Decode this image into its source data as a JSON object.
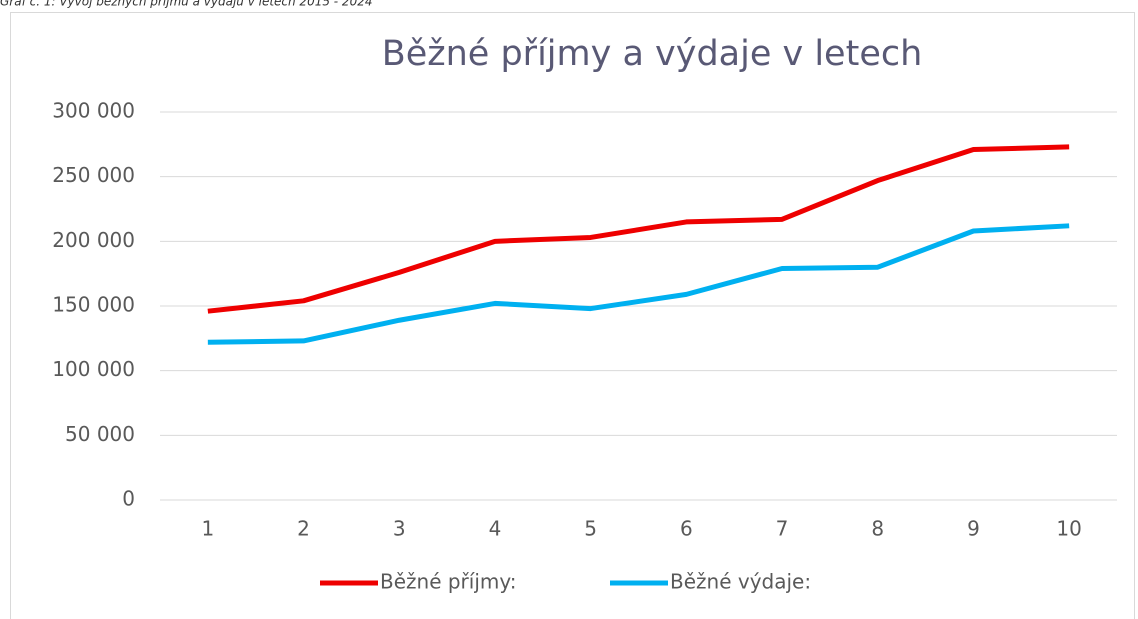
{
  "caption": "Graf č. 1: Vývoj běžných příjmů a výdajů v letech 2015 - 2024",
  "chart_data": {
    "type": "line",
    "title": "Běžné příjmy a výdaje v letech",
    "categories": [
      "1",
      "2",
      "3",
      "4",
      "5",
      "6",
      "7",
      "8",
      "9",
      "10"
    ],
    "series": [
      {
        "name": "Běžné příjmy:",
        "color": "#ee0000",
        "values": [
          146000,
          154000,
          176000,
          200000,
          203000,
          215000,
          217000,
          247000,
          271000,
          273000
        ]
      },
      {
        "name": "Běžné výdaje:",
        "color": "#00b0f0",
        "values": [
          122000,
          123000,
          139000,
          152000,
          148000,
          159000,
          179000,
          180000,
          208000,
          212000
        ]
      }
    ],
    "ylim": [
      0,
      300000
    ],
    "yticks": [
      {
        "value": 0,
        "label": "0"
      },
      {
        "value": 50000,
        "label": "50 000"
      },
      {
        "value": 100000,
        "label": "100 000"
      },
      {
        "value": 150000,
        "label": "150 000"
      },
      {
        "value": 200000,
        "label": "200 000"
      },
      {
        "value": 250000,
        "label": "250 000"
      },
      {
        "value": 300000,
        "label": "300 000"
      }
    ],
    "grid": true,
    "legend": "bottom"
  }
}
